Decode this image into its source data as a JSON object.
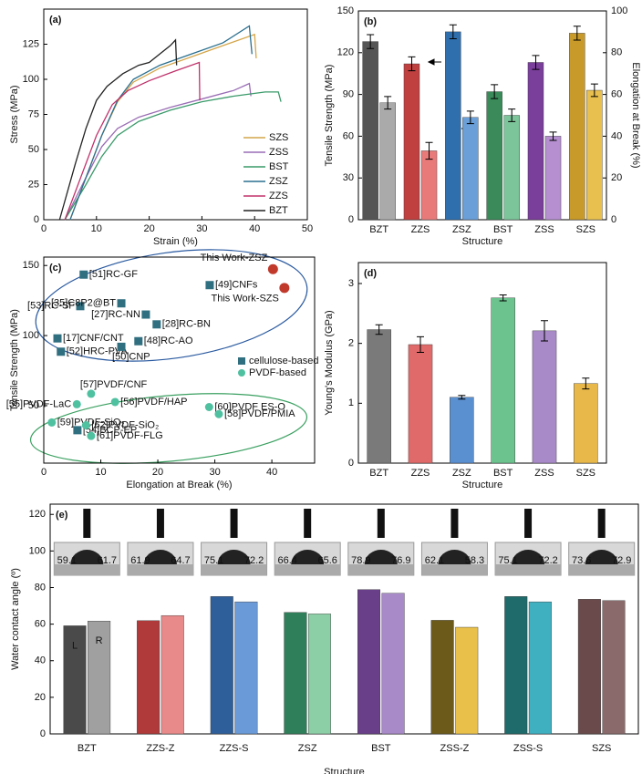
{
  "chart_data": [
    {
      "type": "line",
      "title": "(a)",
      "xlabel": "Strain (%)",
      "ylabel": "Stress (MPa)",
      "xlim": [
        0,
        50
      ],
      "xticks": [
        0,
        10,
        20,
        30,
        40,
        50
      ],
      "ylim": [
        0,
        150
      ],
      "yticks": [
        0,
        25,
        50,
        75,
        100,
        125
      ],
      "legend": "lower-right",
      "series": [
        {
          "name": "SZS",
          "color": "#d4a64a",
          "x": [
            5,
            8,
            11,
            14,
            17,
            22,
            28,
            34,
            40,
            40.3
          ],
          "values": [
            0,
            30,
            60,
            84,
            98,
            108,
            116,
            124,
            132,
            115
          ]
        },
        {
          "name": "ZSS",
          "color": "#9a6db5",
          "x": [
            4,
            8,
            11,
            14,
            18,
            24,
            30,
            36,
            39,
            39.3
          ],
          "values": [
            0,
            30,
            52,
            65,
            73,
            80,
            86,
            92,
            97,
            88
          ]
        },
        {
          "name": "BST",
          "color": "#3a9a6a",
          "x": [
            4,
            8,
            11,
            14,
            18,
            24,
            30,
            36,
            42,
            44.5,
            45
          ],
          "values": [
            0,
            25,
            45,
            60,
            70,
            78,
            84,
            88,
            91,
            91,
            84
          ]
        },
        {
          "name": "ZSZ",
          "color": "#2a6f8f",
          "x": [
            5,
            8,
            11,
            14,
            17,
            22,
            28,
            34,
            39,
            39.5
          ],
          "values": [
            0,
            30,
            60,
            85,
            100,
            110,
            118,
            126,
            138,
            118
          ]
        },
        {
          "name": "ZZS",
          "color": "#c0306a",
          "x": [
            4,
            7,
            10,
            13,
            16,
            20,
            25,
            29.5,
            29.6
          ],
          "values": [
            0,
            30,
            60,
            82,
            92,
            99,
            106,
            112,
            85
          ]
        },
        {
          "name": "BZT",
          "color": "#222222",
          "x": [
            3,
            6,
            8,
            10,
            12,
            15,
            18,
            20,
            22,
            24,
            25,
            25.2
          ],
          "values": [
            0,
            40,
            65,
            85,
            95,
            104,
            110,
            112,
            118,
            124,
            128,
            110
          ]
        }
      ]
    },
    {
      "type": "bar",
      "title": "(b)",
      "xlabel": "Structure",
      "ylabel": "Tensile Strength (MPa)",
      "y2label": "Elongation at Break (%)",
      "categories": [
        "BZT",
        "ZZS",
        "ZSZ",
        "BST",
        "ZSS",
        "SZS"
      ],
      "ylim": [
        0,
        150
      ],
      "yticks": [
        0,
        30,
        60,
        90,
        120,
        150
      ],
      "y2lim": [
        0,
        100
      ],
      "y2ticks": [
        0,
        20,
        40,
        60,
        80,
        100
      ],
      "series": [
        {
          "values": [
            128,
            112,
            135,
            92,
            113,
            134
          ],
          "errors": [
            5,
            5,
            5,
            5,
            5,
            5
          ],
          "colors": [
            "#555555",
            "#c04040",
            "#2f6fae",
            "#3a8a5a",
            "#7a3f9a",
            "#c89a2a"
          ]
        },
        {
          "axis": "y2",
          "values": [
            56,
            33,
            49,
            50,
            40,
            62
          ],
          "errors": [
            3,
            4,
            3,
            3,
            2,
            3
          ],
          "colors": [
            "#aaaaaa",
            "#e87a7a",
            "#6a9fd8",
            "#7cc49a",
            "#b58fd0",
            "#e8c050"
          ]
        }
      ]
    },
    {
      "type": "scatter",
      "title": "(c)",
      "xlabel": "Elongation at Break (%)",
      "ylabel": "Tensile Strength (MPa)",
      "xlim": [
        0,
        47.5
      ],
      "xticks": [
        0,
        10,
        20,
        30,
        40
      ],
      "ylim": [
        9,
        156
      ],
      "yticks": [
        50,
        100,
        150
      ],
      "legend": "right",
      "series": [
        {
          "name": "cellulose-based",
          "marker": "square",
          "color": "#2f6f80",
          "label_color": "#2a5aa0",
          "x": [
            7.0,
            6.4,
            13.6,
            17.9,
            19.8,
            29.1,
            2.4,
            3.0,
            13.6,
            16.6,
            5.9
          ],
          "values": [
            143.5,
            121,
            123,
            115,
            108,
            136,
            98,
            88.5,
            92,
            96,
            32.5
          ],
          "labels": [
            "[51]RC-GF",
            "[53]RC-SF",
            "[35]C8P2@BT",
            "[27]RC-NN",
            "[28]RC-BN",
            "[49]CNFs",
            "[17]CNF/CNT",
            "[52]HRC-PVA",
            "[50]CNP",
            "[48]RC-AO",
            "[54]BCP-EP"
          ]
        },
        {
          "name": "PVDF-based",
          "marker": "circle",
          "color": "#4fc0a0",
          "label_color": "#2f9a80",
          "x": [
            8.3,
            5.8,
            12.5,
            1.4,
            7.4,
            8.3,
            29,
            30.7
          ],
          "values": [
            58.5,
            51,
            52.6,
            38,
            36,
            28.4,
            49,
            44
          ],
          "labels": [
            "[57]PVDF/CNF",
            "[55]PVDF-LaC",
            "[56]PVDF/HAP",
            "[59]PVDF-SiO₂",
            "[62]PVDF-SiO₂",
            "[61]PVDF-FLG",
            "[60]PVDF ES-O",
            "[58]PVDF/PMIA"
          ]
        },
        {
          "marker": "sphere",
          "color": "#c0392b",
          "label_color": "#c0392b",
          "x": [
            40.2,
            42.2
          ],
          "values": [
            147.4,
            134
          ],
          "labels": [
            "This Work-ZSZ",
            "This Work-SZS"
          ]
        }
      ]
    },
    {
      "type": "bar",
      "title": "(d)",
      "xlabel": "Structure",
      "ylabel": "Young's Modulus (GPa)",
      "categories": [
        "BZT",
        "ZZS",
        "ZSZ",
        "BST",
        "ZSS",
        "SZS"
      ],
      "ylim": [
        0,
        3.35
      ],
      "yticks": [
        0,
        1,
        2,
        3
      ],
      "series": [
        {
          "values": [
            2.23,
            1.98,
            1.1,
            2.76,
            2.21,
            1.33
          ],
          "errors": [
            0.08,
            0.13,
            0.03,
            0.05,
            0.17,
            0.09
          ],
          "colors": [
            "#7a7a7a",
            "#e06a6a",
            "#5a8fd0",
            "#6cc38e",
            "#a98ac8",
            "#e8b84a"
          ]
        }
      ]
    },
    {
      "type": "bar",
      "title": "(e)",
      "xlabel": "Structure",
      "ylabel": "Water contact angle (º)",
      "categories": [
        "BZT",
        "ZZS-Z",
        "ZZS-S",
        "ZSZ",
        "BST",
        "ZSS-Z",
        "ZSS-S",
        "SZS"
      ],
      "ylim": [
        0,
        125.6
      ],
      "yticks": [
        0,
        20,
        40,
        60,
        80,
        100,
        120
      ],
      "legend": "first-bars",
      "data_labels": true,
      "series": [
        {
          "name": "L",
          "values": [
            59.1,
            61.9,
            75.1,
            66.4,
            78.9,
            62.1,
            75.1,
            73.6
          ],
          "colors": [
            "#4a4a4a",
            "#b03a3a",
            "#2f5f9a",
            "#2f7f5a",
            "#6a3f8a",
            "#6b5a1a",
            "#1f6a6a",
            "#6a4a4a"
          ]
        },
        {
          "name": "R",
          "values": [
            61.7,
            64.7,
            72.2,
            65.6,
            76.9,
            58.3,
            72.2,
            72.9
          ],
          "colors": [
            "#a0a0a0",
            "#e98a8a",
            "#6a9ad8",
            "#8ccfa6",
            "#a88ac8",
            "#e8c04a",
            "#3fb0c0",
            "#8a6a6a"
          ]
        }
      ]
    }
  ]
}
